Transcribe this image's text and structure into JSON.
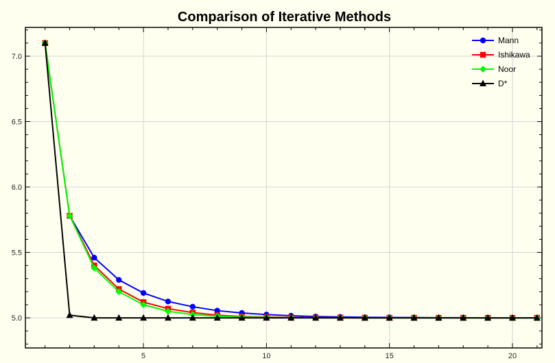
{
  "chart_data": {
    "type": "line",
    "title": "Comparison of Iterative Methods",
    "xlabel": "",
    "ylabel": "",
    "xlim": [
      0.2,
      21.2
    ],
    "ylim": [
      4.77,
      7.22
    ],
    "x_ticks": [
      5,
      10,
      15,
      20
    ],
    "y_ticks": [
      5.0,
      5.5,
      6.0,
      6.5,
      7.0
    ],
    "y_tick_labels": [
      "5.0",
      "5.5",
      "6.0",
      "6.5",
      "7.0"
    ],
    "grid": true,
    "legend_position": "top-right",
    "x": [
      1,
      2,
      3,
      4,
      5,
      6,
      7,
      8,
      9,
      10,
      11,
      12,
      13,
      14,
      15,
      16,
      17,
      18,
      19,
      20,
      21
    ],
    "series": [
      {
        "name": "Mann",
        "color": "#0000ff",
        "marker": "circle",
        "values": [
          7.1,
          5.78,
          5.46,
          5.29,
          5.19,
          5.125,
          5.085,
          5.055,
          5.037,
          5.025,
          5.016,
          5.01,
          5.007,
          5.004,
          5.003,
          5.002,
          5.001,
          5.001,
          5.0,
          5.0,
          5.0
        ]
      },
      {
        "name": "Ishikawa",
        "color": "#ff0000",
        "marker": "square",
        "values": [
          7.1,
          5.78,
          5.4,
          5.22,
          5.12,
          5.07,
          5.04,
          5.02,
          5.01,
          5.006,
          5.003,
          5.002,
          5.001,
          5.0,
          5.0,
          5.0,
          5.0,
          5.0,
          5.0,
          5.0,
          5.0
        ]
      },
      {
        "name": "Noor",
        "color": "#00ff00",
        "marker": "diamond",
        "values": [
          7.1,
          5.78,
          5.38,
          5.2,
          5.1,
          5.05,
          5.025,
          5.012,
          5.006,
          5.003,
          5.001,
          5.0,
          5.0,
          5.0,
          5.0,
          5.0,
          5.0,
          5.0,
          5.0,
          5.0,
          5.0
        ]
      },
      {
        "name": "D*",
        "color": "#000000",
        "marker": "triangle",
        "values": [
          7.1,
          5.02,
          5.0,
          5.0,
          5.0,
          5.0,
          5.0,
          5.0,
          5.0,
          5.0,
          5.0,
          5.0,
          5.0,
          5.0,
          5.0,
          5.0,
          5.0,
          5.0,
          5.0,
          5.0,
          5.0
        ]
      }
    ]
  }
}
